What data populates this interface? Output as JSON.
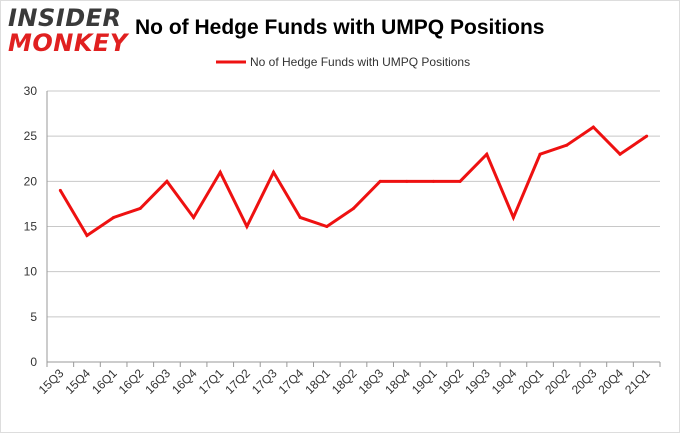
{
  "brand": {
    "logo_top": "INSIDER",
    "logo_bottom": "MONKEY"
  },
  "colors": {
    "series": "#ee1111",
    "grid": "#c8c8c8",
    "axis": "#999999",
    "background": "#ffffff"
  },
  "chart_data": {
    "type": "line",
    "title": "No of Hedge Funds with UMPQ Positions",
    "xlabel": "",
    "ylabel": "",
    "ylim": [
      0,
      30
    ],
    "yticks": [
      0,
      5,
      10,
      15,
      20,
      25,
      30
    ],
    "grid": true,
    "legend_position": "top-center",
    "categories": [
      "15Q3",
      "15Q4",
      "16Q1",
      "16Q2",
      "16Q3",
      "16Q4",
      "17Q1",
      "17Q2",
      "17Q3",
      "17Q4",
      "18Q1",
      "18Q2",
      "18Q3",
      "18Q4",
      "19Q1",
      "19Q2",
      "19Q3",
      "19Q4",
      "20Q1",
      "20Q2",
      "20Q3",
      "20Q4",
      "21Q1"
    ],
    "series": [
      {
        "name": "No of Hedge Funds with UMPQ Positions",
        "values": [
          19,
          14,
          16,
          17,
          20,
          16,
          21,
          15,
          21,
          16,
          15,
          17,
          20,
          20,
          20,
          20,
          23,
          16,
          23,
          24,
          26,
          23,
          25
        ]
      }
    ]
  }
}
